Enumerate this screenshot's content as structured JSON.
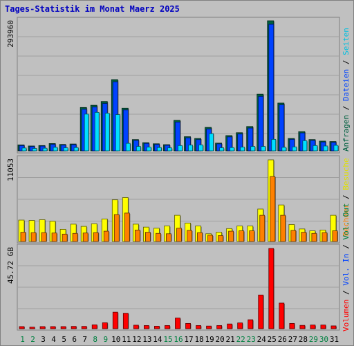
{
  "title": "Tages-Statistik im Monat Maerz 2025",
  "colors": {
    "background": "#c0c0c0",
    "panel": "#c0c0c0",
    "title": "#0000c0",
    "grid": "#808080",
    "anfragen": "#006040",
    "dateien": "#0042ff",
    "seiten": "#00e0ff",
    "besuche": "#ffff00",
    "rechner": "#ff8000",
    "volumen": "#ff0000",
    "day_normal": "#000000",
    "day_weekend": "#008040"
  },
  "chart_data": [
    {
      "type": "bar",
      "name": "hits-files-pages",
      "ymax_label": "293960",
      "ylim": [
        0,
        293960
      ],
      "categories": [
        "1",
        "2",
        "3",
        "4",
        "5",
        "6",
        "7",
        "8",
        "9",
        "10",
        "11",
        "12",
        "13",
        "14",
        "15",
        "16",
        "17",
        "18",
        "19",
        "20",
        "21",
        "22",
        "23",
        "24",
        "25",
        "26",
        "27",
        "28",
        "29",
        "30",
        "31"
      ],
      "series": [
        {
          "name": "Anfragen",
          "color": "#006040",
          "values": [
            13500,
            11000,
            12000,
            16500,
            14500,
            15500,
            98000,
            103000,
            111500,
            161000,
            96500,
            25500,
            18500,
            16000,
            14000,
            69000,
            32000,
            28000,
            53000,
            17500,
            34500,
            41000,
            55000,
            128000,
            293960,
            108000,
            28000,
            43500,
            25500,
            22000,
            21000
          ]
        },
        {
          "name": "Dateien",
          "color": "#0042ff",
          "values": [
            12000,
            9800,
            10800,
            14800,
            13000,
            14000,
            94000,
            99000,
            107000,
            156000,
            92500,
            23500,
            16800,
            14500,
            12600,
            65000,
            29500,
            25500,
            49500,
            15800,
            31500,
            38000,
            51500,
            123000,
            286000,
            104000,
            26000,
            40500,
            23500,
            20000,
            19200
          ]
        },
        {
          "name": "Seiten",
          "color": "#00e0ff",
          "values": [
            6500,
            5500,
            6000,
            8000,
            7000,
            7500,
            83000,
            87000,
            85000,
            82000,
            17000,
            10000,
            8500,
            7500,
            6800,
            12000,
            13000,
            13500,
            39000,
            7000,
            7500,
            8500,
            10000,
            10000,
            26000,
            8000,
            9000,
            23000,
            12000,
            11000,
            12500
          ]
        }
      ]
    },
    {
      "type": "bar",
      "name": "visits-hosts",
      "ymax_label": "11053",
      "ylim": [
        0,
        11053
      ],
      "categories": [
        "1",
        "2",
        "3",
        "4",
        "5",
        "6",
        "7",
        "8",
        "9",
        "10",
        "11",
        "12",
        "13",
        "14",
        "15",
        "16",
        "17",
        "18",
        "19",
        "20",
        "21",
        "22",
        "23",
        "24",
        "25",
        "26",
        "27",
        "28",
        "29",
        "30",
        "31"
      ],
      "series": [
        {
          "name": "Besuche",
          "color": "#ffff00",
          "values": [
            2900,
            2850,
            2950,
            2750,
            1650,
            2350,
            2050,
            2400,
            3050,
            5650,
            5950,
            2350,
            1950,
            1800,
            2100,
            3550,
            2500,
            2100,
            1050,
            1250,
            1750,
            2100,
            2100,
            4400,
            11053,
            4950,
            2300,
            1700,
            1450,
            1550,
            3550
          ]
        },
        {
          "name": "Rechner",
          "color": "#ff8000",
          "values": [
            1250,
            1200,
            1200,
            1150,
            1000,
            1100,
            1150,
            1200,
            1400,
            3650,
            3850,
            1550,
            1250,
            1100,
            1050,
            1800,
            1500,
            1200,
            850,
            800,
            1400,
            1450,
            1450,
            3550,
            8800,
            3550,
            1500,
            1250,
            1100,
            1200,
            1450
          ]
        }
      ]
    },
    {
      "type": "bar",
      "name": "volume",
      "ymax_label": "45.72 GB",
      "ylim": [
        0,
        45.72
      ],
      "categories": [
        "1",
        "2",
        "3",
        "4",
        "5",
        "6",
        "7",
        "8",
        "9",
        "10",
        "11",
        "12",
        "13",
        "14",
        "15",
        "16",
        "17",
        "18",
        "19",
        "20",
        "21",
        "22",
        "23",
        "24",
        "25",
        "26",
        "27",
        "28",
        "29",
        "30",
        "31"
      ],
      "series": [
        {
          "name": "Volumen",
          "color": "#ff0000",
          "values": [
            1.2,
            0.9,
            1.2,
            1.2,
            1.2,
            1.3,
            1.3,
            2.2,
            3.4,
            9.4,
            8.8,
            2.0,
            1.8,
            1.4,
            1.8,
            6.1,
            3.0,
            1.8,
            1.5,
            1.8,
            2.7,
            3.3,
            5.1,
            19.2,
            45.72,
            14.6,
            3.0,
            1.9,
            2.1,
            2.1,
            1.6
          ]
        }
      ]
    }
  ],
  "day_labels": [
    {
      "text": "1",
      "weekend": true
    },
    {
      "text": "2",
      "weekend": true
    },
    {
      "text": "3",
      "weekend": false
    },
    {
      "text": "4",
      "weekend": false
    },
    {
      "text": "5",
      "weekend": false
    },
    {
      "text": "6",
      "weekend": false
    },
    {
      "text": "7",
      "weekend": false
    },
    {
      "text": "8",
      "weekend": true
    },
    {
      "text": "9",
      "weekend": true
    },
    {
      "text": "10",
      "weekend": false
    },
    {
      "text": "11",
      "weekend": false
    },
    {
      "text": "12",
      "weekend": false
    },
    {
      "text": "13",
      "weekend": false
    },
    {
      "text": "14",
      "weekend": false
    },
    {
      "text": "15",
      "weekend": true
    },
    {
      "text": "16",
      "weekend": true
    },
    {
      "text": "17",
      "weekend": false
    },
    {
      "text": "18",
      "weekend": false
    },
    {
      "text": "19",
      "weekend": false
    },
    {
      "text": "20",
      "weekend": false
    },
    {
      "text": "21",
      "weekend": false
    },
    {
      "text": "22",
      "weekend": true
    },
    {
      "text": "23",
      "weekend": true
    },
    {
      "text": "24",
      "weekend": false
    },
    {
      "text": "25",
      "weekend": false
    },
    {
      "text": "26",
      "weekend": false
    },
    {
      "text": "27",
      "weekend": false
    },
    {
      "text": "28",
      "weekend": false
    },
    {
      "text": "29",
      "weekend": true
    },
    {
      "text": "30",
      "weekend": true
    },
    {
      "text": "31",
      "weekend": false
    }
  ],
  "legend_top": [
    {
      "text": "Anfragen",
      "color": "#006040"
    },
    {
      "text": " / ",
      "color": "#000000"
    },
    {
      "text": "Dateien",
      "color": "#0042ff"
    },
    {
      "text": " / ",
      "color": "#000000"
    },
    {
      "text": "Seiten",
      "color": "#00c0e0"
    }
  ],
  "legend_middle": [
    {
      "text": "Rechner",
      "color": "#ff8000"
    },
    {
      "text": " / ",
      "color": "#000000"
    },
    {
      "text": "Besuche",
      "color": "#e0e000"
    }
  ],
  "legend_bottom": [
    {
      "text": "Volumen",
      "color": "#ff0000"
    },
    {
      "text": " / ",
      "color": "#000000"
    },
    {
      "text": "Vol. In",
      "color": "#0042ff"
    },
    {
      "text": " / ",
      "color": "#000000"
    },
    {
      "text": "Vol. Out",
      "color": "#008040"
    }
  ]
}
